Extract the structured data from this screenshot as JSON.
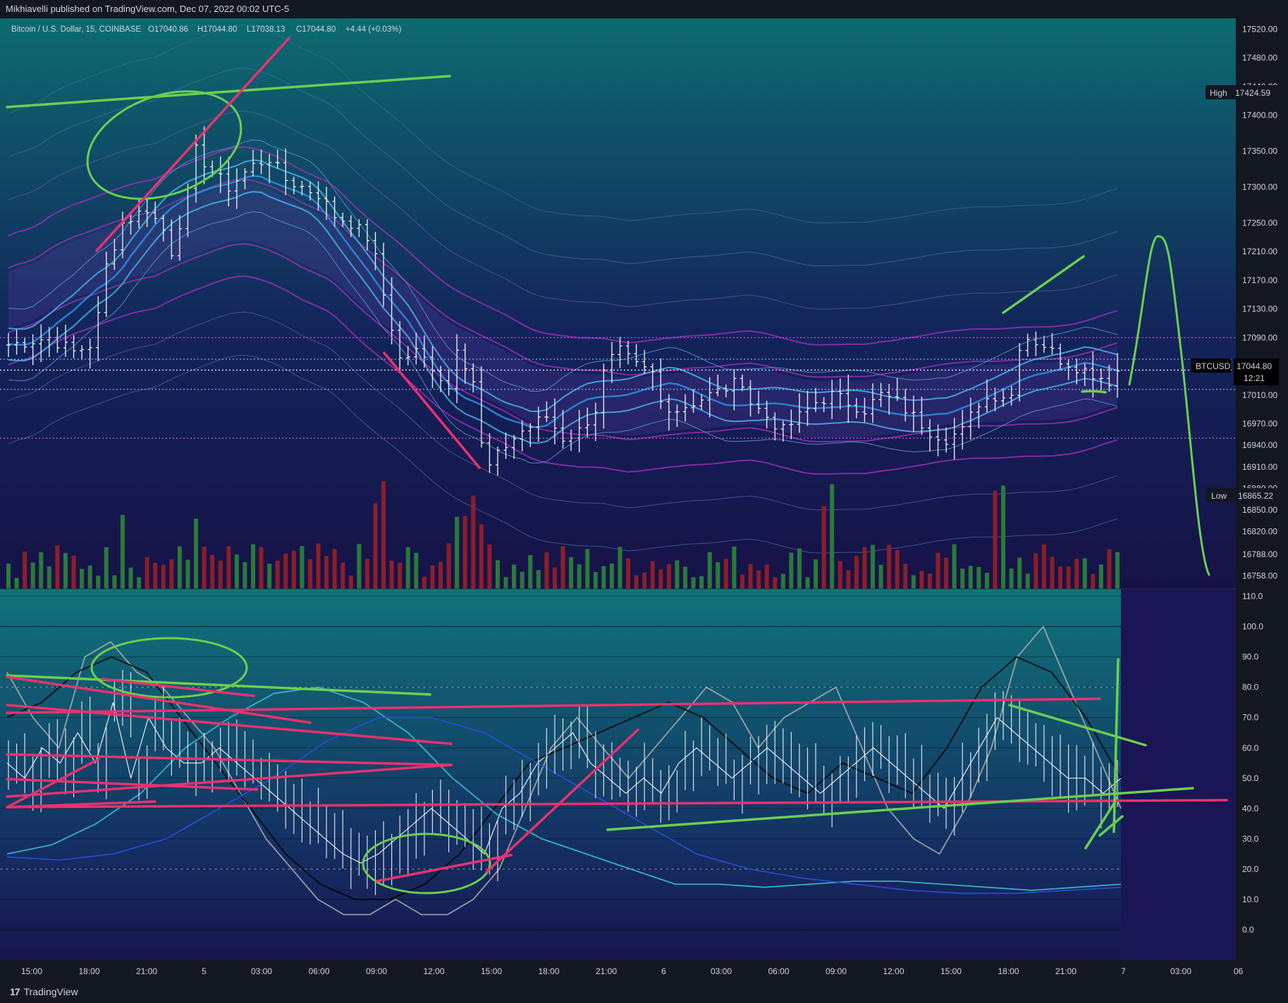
{
  "header": {
    "publisher": "Mikhiavelli published on TradingView.com, Dec 07, 2022 00:02 UTC-5"
  },
  "footer": {
    "brand": "TradingView",
    "logo": "tradingview-logo-icon"
  },
  "colors": {
    "bg_top": "#0e6e73",
    "bg_bottom": "#14124a",
    "up": "#2a7a3a",
    "down": "#8c1e2a",
    "green_draw": "#6ccf4e",
    "pink_draw": "#e8326f"
  },
  "chart_data": [
    {
      "type": "candlestick",
      "symbol": "Bitcoin / U.S. Dollar, 15, COINBASE",
      "ohlc": {
        "O": "17040.86",
        "H": "17044.80",
        "L": "17038.13",
        "C": "17044.80",
        "change": "+4.44 (+0.03%)"
      },
      "y_ticks": [
        "17520.00",
        "17480.00",
        "17440.00",
        "17400.00",
        "17350.00",
        "17300.00",
        "17250.00",
        "17210.00",
        "17170.00",
        "17130.00",
        "17090.00",
        "17010.00",
        "16970.00",
        "16940.00",
        "16910.00",
        "16880.00",
        "16850.00",
        "16820.00",
        "16788.00",
        "16758.00"
      ],
      "ylim": [
        16740,
        17535
      ],
      "high_label": "High",
      "high_value": "17424.59",
      "low_label": "Low",
      "low_value": "16865.22",
      "last_symbol": "BTCUSD",
      "last_price": "17044.80",
      "countdown": "12:21",
      "x_ticks": [
        "15:00",
        "18:00",
        "21:00",
        "5",
        "03:00",
        "06:00",
        "09:00",
        "12:00",
        "15:00",
        "18:00",
        "21:00",
        "6",
        "03:00",
        "06:00",
        "09:00",
        "12:00",
        "15:00",
        "18:00",
        "21:00",
        "7",
        "03:00",
        "06"
      ],
      "close_path": [
        [
          0,
          17080
        ],
        [
          5,
          17090
        ],
        [
          8,
          17070
        ],
        [
          10,
          17080
        ],
        [
          11,
          17120
        ],
        [
          12,
          17190
        ],
        [
          14,
          17250
        ],
        [
          17,
          17270
        ],
        [
          19,
          17240
        ],
        [
          20,
          17210
        ],
        [
          22,
          17290
        ],
        [
          23,
          17350
        ],
        [
          25,
          17320
        ],
        [
          27,
          17300
        ],
        [
          30,
          17330
        ],
        [
          32,
          17340
        ],
        [
          34,
          17310
        ],
        [
          36,
          17300
        ],
        [
          38,
          17290
        ],
        [
          40,
          17260
        ],
        [
          42,
          17250
        ],
        [
          44,
          17230
        ],
        [
          45,
          17200
        ],
        [
          46,
          17150
        ],
        [
          48,
          17060
        ],
        [
          50,
          17070
        ],
        [
          52,
          17050
        ],
        [
          54,
          17020
        ],
        [
          55,
          17080
        ],
        [
          57,
          17030
        ],
        [
          58,
          16940
        ],
        [
          59,
          16910
        ],
        [
          61,
          16940
        ],
        [
          63,
          16960
        ],
        [
          66,
          16980
        ],
        [
          68,
          16950
        ],
        [
          70,
          16960
        ],
        [
          72,
          16990
        ],
        [
          73,
          17040
        ],
        [
          74,
          17060
        ],
        [
          75,
          17070
        ],
        [
          77,
          17050
        ],
        [
          79,
          17040
        ],
        [
          80,
          17000
        ],
        [
          82,
          16990
        ],
        [
          84,
          17000
        ],
        [
          86,
          17010
        ],
        [
          88,
          17020
        ],
        [
          90,
          17030
        ],
        [
          91,
          17000
        ],
        [
          93,
          16980
        ],
        [
          95,
          16960
        ],
        [
          97,
          16980
        ],
        [
          99,
          17000
        ],
        [
          101,
          17010
        ],
        [
          103,
          17000
        ],
        [
          105,
          16990
        ],
        [
          107,
          17010
        ],
        [
          109,
          17000
        ],
        [
          111,
          16980
        ],
        [
          113,
          16960
        ],
        [
          115,
          16950
        ],
        [
          117,
          16960
        ],
        [
          119,
          17000
        ],
        [
          121,
          17010
        ],
        [
          123,
          17010
        ],
        [
          124,
          17080
        ],
        [
          125,
          17090
        ],
        [
          127,
          17080
        ],
        [
          129,
          17060
        ],
        [
          131,
          17050
        ],
        [
          133,
          17040
        ],
        [
          135,
          17030
        ],
        [
          136,
          17044
        ]
      ],
      "volume_note": "volume bars at bottom of price pane"
    },
    {
      "type": "line",
      "y_ticks": [
        "110.0",
        "100.0",
        "90.0",
        "80.0",
        "70.0",
        "60.0",
        "50.0",
        "40.0",
        "30.0",
        "20.0",
        "10.0",
        "0.0"
      ],
      "ylim": [
        -10,
        112
      ],
      "grid": true,
      "series": [
        {
          "color": "#ffffff",
          "values": [
            55,
            50,
            60,
            55,
            65,
            55,
            75,
            50,
            70,
            60,
            55,
            55,
            60,
            55,
            50,
            45,
            40,
            35,
            30,
            25,
            22,
            25,
            30,
            35,
            40,
            35,
            30,
            25,
            40,
            45,
            55,
            60,
            65,
            55,
            50,
            45,
            50,
            45,
            55,
            60,
            55,
            50,
            55,
            60,
            55,
            50,
            45,
            50,
            55,
            60,
            55,
            50,
            45,
            40,
            50,
            60,
            70,
            65,
            60,
            55,
            50,
            50,
            45,
            50
          ]
        },
        {
          "color": "#b0b0b0",
          "values": [
            85,
            70,
            60,
            90,
            95,
            85,
            80,
            70,
            60,
            45,
            30,
            20,
            10,
            5,
            5,
            10,
            5,
            5,
            10,
            20,
            40,
            60,
            70,
            60,
            50,
            60,
            70,
            80,
            75,
            60,
            70,
            75,
            80,
            60,
            40,
            30,
            25,
            40,
            60,
            90,
            100,
            80,
            60,
            40
          ]
        },
        {
          "color": "#000000",
          "values": [
            70,
            75,
            85,
            90,
            85,
            70,
            55,
            40,
            25,
            15,
            10,
            10,
            15,
            25,
            40,
            55,
            60,
            65,
            70,
            75,
            70,
            60,
            50,
            45,
            55,
            50,
            45,
            60,
            80,
            90,
            85,
            70,
            50
          ]
        },
        {
          "color": "#3fc5d8",
          "values": [
            25,
            28,
            35,
            45,
            60,
            70,
            78,
            80,
            75,
            65,
            50,
            38,
            30,
            25,
            20,
            15,
            15,
            14,
            15,
            16,
            16,
            15,
            14,
            13,
            14,
            15
          ]
        },
        {
          "color": "#2b4fe0",
          "values": [
            24,
            23,
            25,
            30,
            40,
            50,
            62,
            70,
            70,
            65,
            55,
            45,
            35,
            25,
            20,
            17,
            15,
            13,
            12,
            12,
            13,
            14
          ]
        }
      ]
    }
  ]
}
